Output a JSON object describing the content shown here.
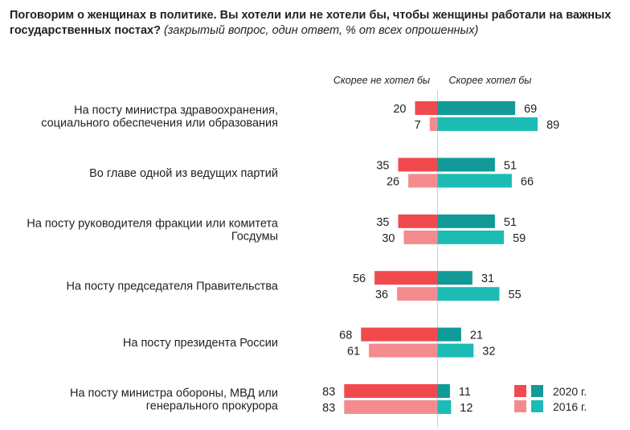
{
  "title": {
    "bold": "Поговорим о женщинах в политике. Вы хотели или не хотели бы, чтобы женщины работали на важных государственных постах?",
    "italic": "(закрытый вопрос, один ответ, % от всех опрошенных)"
  },
  "chart_data": {
    "type": "bar",
    "orientation": "horizontal-diverging",
    "column_headers": {
      "negative": "Скорее не хотел бы",
      "positive": "Скорее хотел бы"
    },
    "categories": [
      "На посту министра здравоохранения, социального обеспечения или образования",
      "Во главе одной из ведущих партий",
      "На посту руководителя фракции или комитета Госдумы",
      "На посту председателя Правительства",
      "На посту президента России",
      "На посту министра обороны, МВД или генерального прокурора"
    ],
    "category_lines": [
      [
        "На посту министра здравоохранения,",
        "социального обеспечения или образования"
      ],
      [
        "Во главе одной из ведущих партий"
      ],
      [
        "На посту руководителя фракции или комитета",
        "Госдумы"
      ],
      [
        "На посту председателя Правительства"
      ],
      [
        "На посту президента России"
      ],
      [
        "На посту министра обороны, МВД или",
        "генерального прокурора"
      ]
    ],
    "series": [
      {
        "name": "2020 г.",
        "negative": [
          20,
          35,
          35,
          56,
          68,
          83
        ],
        "positive": [
          69,
          51,
          51,
          31,
          21,
          11
        ]
      },
      {
        "name": "2016 г.",
        "negative": [
          7,
          26,
          30,
          36,
          61,
          83
        ],
        "positive": [
          89,
          66,
          59,
          55,
          32,
          12
        ]
      }
    ],
    "colors": {
      "2020 г.": {
        "negative": "#f04a4e",
        "positive": "#129a98"
      },
      "2016 г.": {
        "negative": "#f48c8f",
        "positive": "#1cbcb5"
      }
    },
    "legend_position": "bottom-right",
    "grid": false
  }
}
